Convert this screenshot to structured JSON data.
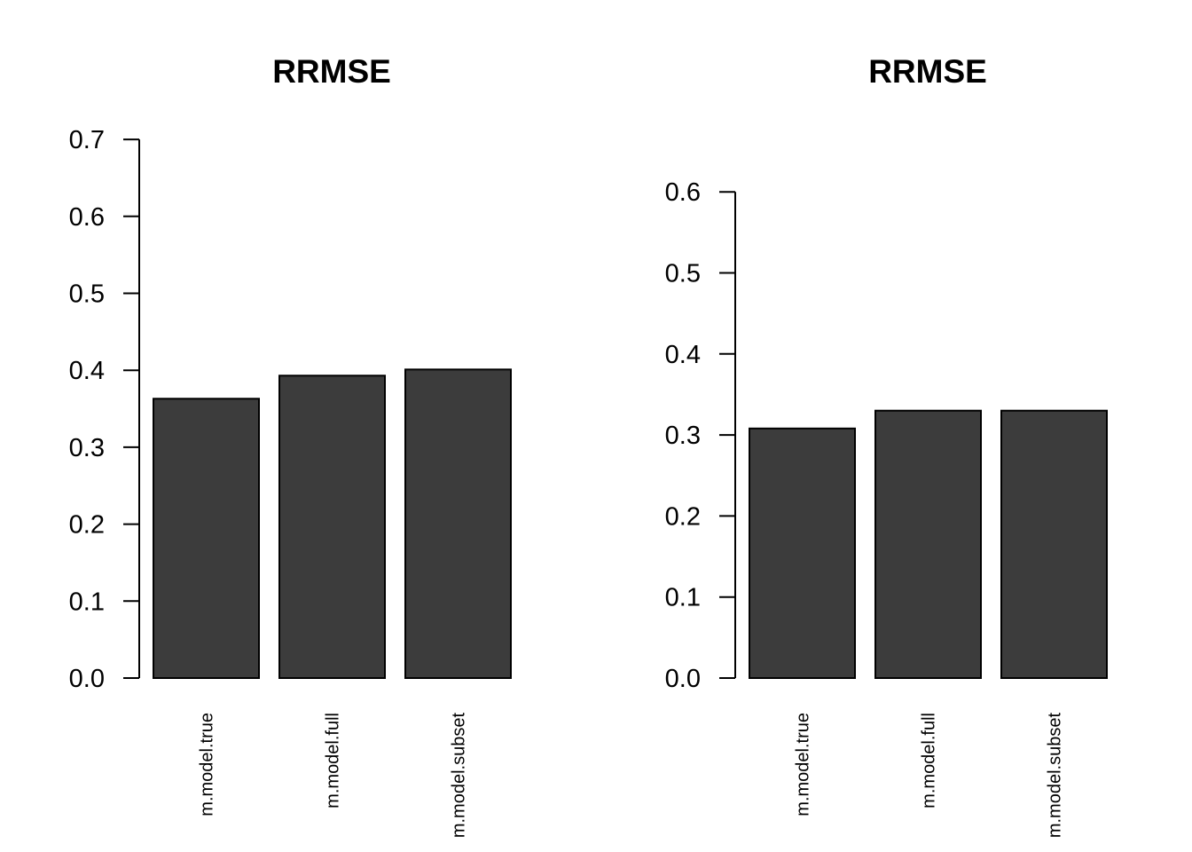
{
  "bar_color": "#3c3c3c",
  "chart_data": [
    {
      "type": "bar",
      "title": "RRMSE",
      "xlabel": "",
      "ylabel": "",
      "categories": [
        "m.model.true",
        "m.model.full",
        "m.model.subset"
      ],
      "values": [
        0.363,
        0.393,
        0.401
      ],
      "ylim": [
        0,
        0.7
      ],
      "yticks": [
        "0.0",
        "0.1",
        "0.2",
        "0.3",
        "0.4",
        "0.5",
        "0.6",
        "0.7"
      ],
      "grid": false,
      "legend": "none"
    },
    {
      "type": "bar",
      "title": "RRMSE",
      "xlabel": "",
      "ylabel": "",
      "categories": [
        "m.model.true",
        "m.model.full",
        "m.model.subset"
      ],
      "values": [
        0.308,
        0.33,
        0.33
      ],
      "ylim": [
        0,
        0.6
      ],
      "yticks": [
        "0.0",
        "0.1",
        "0.2",
        "0.3",
        "0.4",
        "0.5",
        "0.6"
      ],
      "grid": false,
      "legend": "none"
    }
  ]
}
